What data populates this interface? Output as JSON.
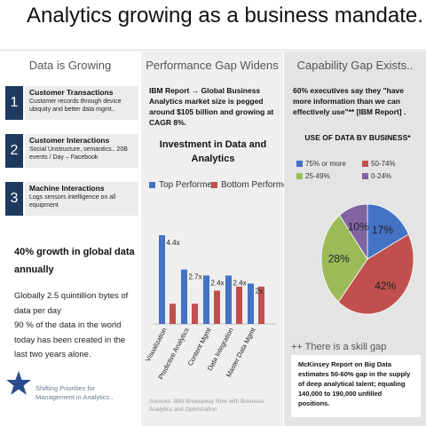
{
  "title": "Analytics growing as a business mandate.",
  "column1": {
    "header": "Data is Growing",
    "items": [
      {
        "num": "1",
        "title": "Customer Transactions",
        "desc": "Customer records through device ubiquity and better data mgmt.."
      },
      {
        "num": "2",
        "title": "Customer Interactions",
        "desc": "Social Unstructure, semantics.. 20B events / Day – Facebook"
      },
      {
        "num": "3",
        "title": "Machine Interactions",
        "desc": "Logs sensors intelligence on all equipment"
      }
    ],
    "growth_heading": "40% growth in global data annually",
    "growth_text": "Globally 2.5 quintillion bytes of data per day\n90 % of the data in the world today has been created in the last two years alone.",
    "footer": "Shifting Priorities for Management in Analytics..",
    "star_icon": "star-icon"
  },
  "column2": {
    "header": "Performance Gap Widens",
    "ibm_text": "IBM Report → Global Business Analytics market size is pegged around $105 billion and growing at CAGR 8%.",
    "sources": "Sources: IBM Breakaway Now with Business Analytics and Optimization"
  },
  "column3": {
    "header": "Capability Gap Exists..",
    "exec_text": "60% executives say they \"have more information than we can effectively use\"** [IBM Report] .",
    "use_heading": "USE OF DATA BY BUSINESS*",
    "skill_heading": "++ There is a skill gap",
    "skill_text": "McKinsey Report on Big Data estimates 50-60% gap in the supply of deep analytical talent; equaling 140,000 to 190,000 unfilled positions."
  },
  "colors": {
    "blue": "#4472c4",
    "red": "#c0504d",
    "green": "#9bbb59",
    "purple": "#8064a2",
    "navy": "#1f3a5f"
  },
  "chart_data": [
    {
      "type": "bar",
      "title": "Investment in Data and Analytics",
      "categories": [
        "Visualization",
        "Predictive Analytics",
        "Content Mgmt",
        "Data Integration",
        "Master Data Mgmt"
      ],
      "series": [
        {
          "name": "Top Performer",
          "values": [
            4.4,
            2.7,
            2.4,
            2.4,
            2.0
          ]
        },
        {
          "name": "Bottom Performer",
          "values": [
            1.0,
            1.0,
            1.65,
            1.85,
            1.85
          ]
        }
      ],
      "data_labels": [
        "4.4x",
        "2.7x",
        "2.4x",
        "2.4x",
        "2x"
      ],
      "legend_position": "top",
      "grid": false
    },
    {
      "type": "pie",
      "title": "USE OF DATA BY BUSINESS*",
      "slices": [
        {
          "label": "75% or more",
          "value": 17,
          "color": "#4472c4"
        },
        {
          "label": "50-74%",
          "value": 42,
          "color": "#c0504d"
        },
        {
          "label": "25-49%",
          "value": 28,
          "color": "#9bbb59"
        },
        {
          "label": "0-24%",
          "value": 10,
          "color": "#8064a2"
        }
      ],
      "data_labels": [
        "17%",
        "42%",
        "28%",
        "10%"
      ],
      "legend_position": "top"
    }
  ]
}
